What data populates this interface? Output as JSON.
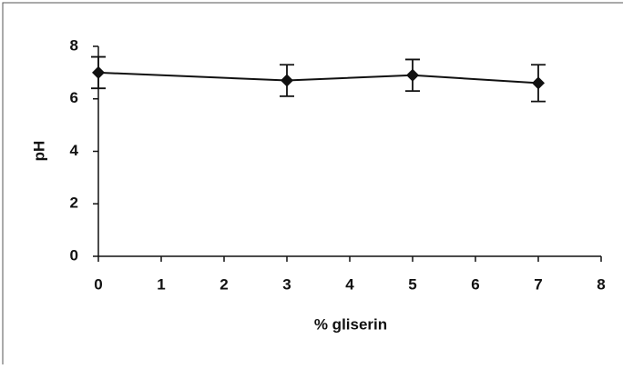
{
  "chart_data": {
    "type": "line",
    "x_label": "% gliserin",
    "y_label": "pH",
    "x": [
      0,
      3,
      5,
      7
    ],
    "values": [
      7.0,
      6.7,
      6.9,
      6.6
    ],
    "errors": [
      0.6,
      0.6,
      0.6,
      0.7
    ],
    "color": "#111111",
    "xlim": [
      0,
      8
    ],
    "xticks": [
      0,
      1,
      2,
      3,
      4,
      5,
      6,
      7,
      8
    ],
    "ylim": [
      0,
      8
    ],
    "yticks": [
      0,
      2,
      4,
      6,
      8
    ],
    "grid": false
  }
}
